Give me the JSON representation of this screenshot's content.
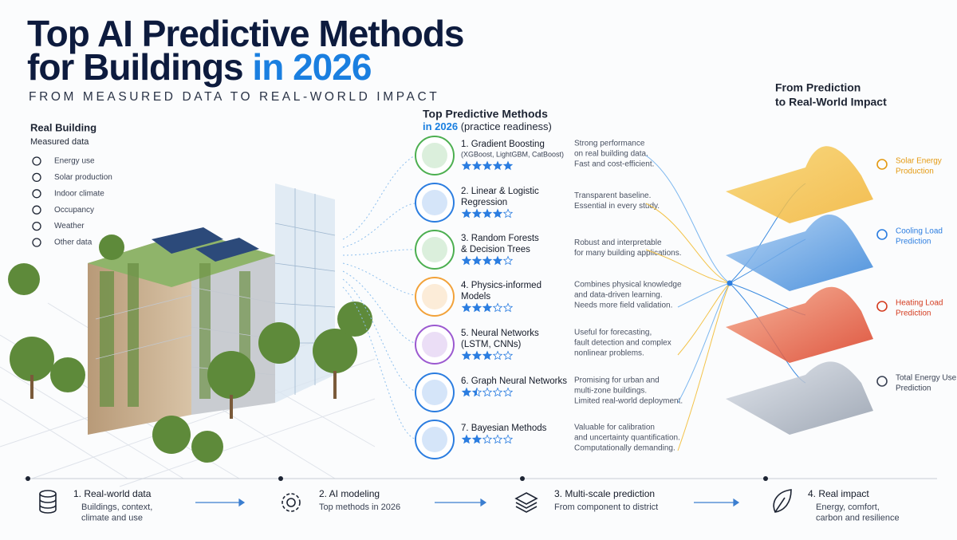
{
  "header": {
    "title_line1": "Top AI Predictive Methods",
    "title_line2": "for Buildings",
    "title_highlight": "in 2026",
    "subtitle": "FROM MEASURED DATA TO REAL-WORLD IMPACT"
  },
  "building": {
    "title": "Real Building",
    "subtitle": "Measured data",
    "items": [
      "Energy use",
      "Solar production",
      "Indoor climate",
      "Occupancy",
      "Weather",
      "Other data"
    ]
  },
  "methods_header": {
    "title": "Top Predictive Methods",
    "year": "in 2026",
    "note": "(practice readiness)"
  },
  "methods": [
    {
      "name": [
        "1. Gradient Boosting"
      ],
      "detail": "(XGBoost, LightGBM, CatBoost)",
      "rating": 5,
      "description": [
        "Strong performance",
        "on real building data.",
        "Fast and cost-efficient."
      ]
    },
    {
      "name": [
        "2. Linear & Logistic",
        "Regression"
      ],
      "rating": 4,
      "description": [
        "Transparent baseline.",
        "Essential in every study."
      ]
    },
    {
      "name": [
        "3. Random Forests",
        "& Decision Trees"
      ],
      "rating": 4,
      "description": [
        "Robust and interpretable",
        "for many building applications."
      ]
    },
    {
      "name": [
        "4. Physics-informed",
        "Models"
      ],
      "rating": 3,
      "description": [
        "Combines physical knowledge",
        "and data-driven learning.",
        "Needs more field validation."
      ]
    },
    {
      "name": [
        "5. Neural Networks",
        "(LSTM, CNNs)"
      ],
      "rating": 3,
      "description": [
        "Useful for forecasting,",
        "fault detection and complex",
        "nonlinear problems."
      ]
    },
    {
      "name": [
        "6. Graph Neural Networks"
      ],
      "rating": 1.5,
      "description": [
        "Promising for urban and",
        "multi-zone buildings.",
        "Limited real-world deployment."
      ]
    },
    {
      "name": [
        "7. Bayesian Methods"
      ],
      "rating": 2,
      "description": [
        "Valuable for calibration",
        "and uncertainty quantification.",
        "Computationally demanding."
      ]
    }
  ],
  "impact": {
    "title": [
      "From Prediction",
      "to Real-World Impact"
    ],
    "outputs": [
      {
        "label": [
          "Solar Energy",
          "Production"
        ]
      },
      {
        "label": [
          "Cooling Load",
          "Prediction"
        ]
      },
      {
        "label": [
          "Heating Load",
          "Prediction"
        ]
      },
      {
        "label": [
          "Total Energy Use",
          "Prediction"
        ]
      }
    ]
  },
  "steps": [
    {
      "title": "1. Real-world data",
      "description": [
        "Buildings, context,",
        "climate and use"
      ]
    },
    {
      "title": "2. AI modeling",
      "description": [
        "Top methods in 2026"
      ]
    },
    {
      "title": "3. Multi-scale prediction",
      "description": [
        "From component to district"
      ]
    },
    {
      "title": "4. Real impact",
      "description": [
        "Energy, comfort,",
        "carbon and resilience"
      ]
    }
  ]
}
